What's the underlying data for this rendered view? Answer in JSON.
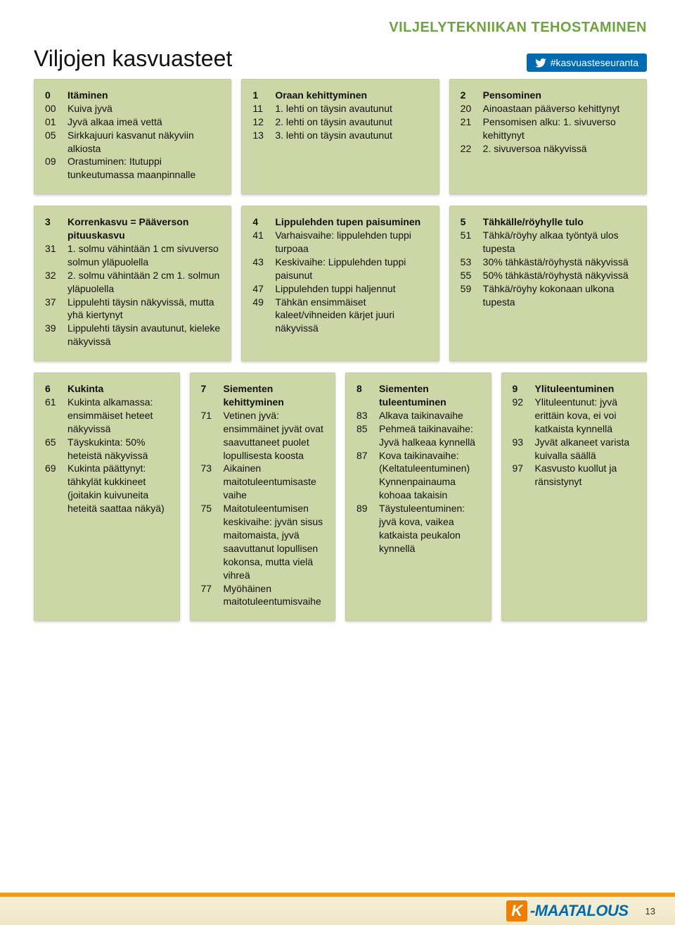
{
  "header": {
    "section_tag": "VILJELYTEKNIIKAN TEHOSTAMINEN",
    "title": "Viljojen kasvuasteet",
    "hashtag": "#kasvuasteseuranta"
  },
  "colors": {
    "card_bg": "#cdd6a7",
    "section_tag": "#6fa33e",
    "pill_bg": "#006ab0",
    "footer_accent": "#f39b13",
    "logo_orange": "#ef7d00",
    "logo_blue": "#006ab0"
  },
  "footer": {
    "page_number": "13",
    "logo_k": "K",
    "logo_rest": "-MAATALOUS"
  },
  "rows": [
    {
      "cols": 3,
      "cards": [
        {
          "entries": [
            {
              "c": "0",
              "t": "Itäminen"
            },
            {
              "c": "00",
              "t": "Kuiva jyvä"
            },
            {
              "c": "01",
              "t": "Jyvä alkaa imeä vettä"
            },
            {
              "c": "05",
              "t": "Sirkkajuuri kasvanut näkyviin alkiosta"
            },
            {
              "c": "09",
              "t": "Orastuminen: Itutuppi tunkeutumassa maanpinnalle"
            }
          ]
        },
        {
          "entries": [
            {
              "c": "1",
              "t": "Oraan kehittyminen"
            },
            {
              "c": "11",
              "t": "1. lehti on täysin avautunut"
            },
            {
              "c": "12",
              "t": "2. lehti on täysin avautunut"
            },
            {
              "c": "13",
              "t": "3. lehti on täysin avautunut"
            }
          ]
        },
        {
          "entries": [
            {
              "c": "2",
              "t": "Pensominen"
            },
            {
              "c": "20",
              "t": "Ainoastaan pääverso kehittynyt"
            },
            {
              "c": "21",
              "t": "Pensomisen alku: 1. sivuverso kehittynyt"
            },
            {
              "c": "22",
              "t": "2. sivuversoa näkyvissä"
            }
          ]
        }
      ]
    },
    {
      "cols": 3,
      "cards": [
        {
          "entries": [
            {
              "c": "3",
              "t": "Korrenkasvu = Pääverson pituuskasvu"
            },
            {
              "c": "31",
              "t": "1. solmu vähintään 1 cm sivuverso solmun yläpuolella"
            },
            {
              "c": "32",
              "t": "2. solmu vähintään 2 cm 1. solmun yläpuolella"
            },
            {
              "c": "37",
              "t": "Lippulehti täysin näkyvissä, mutta yhä kiertynyt"
            },
            {
              "c": "39",
              "t": "Lippulehti täysin avautunut, kieleke näkyvissä"
            }
          ]
        },
        {
          "entries": [
            {
              "c": "4",
              "t": "Lippulehden tupen paisuminen"
            },
            {
              "c": "41",
              "t": "Varhaisvaihe: lippulehden tuppi turpoaa"
            },
            {
              "c": "43",
              "t": "Keskivaihe: Lippulehden tuppi paisunut"
            },
            {
              "c": "47",
              "t": "Lippulehden tuppi haljennut"
            },
            {
              "c": "49",
              "t": "Tähkän ensimmäiset kaleet/vihneiden kärjet juuri näkyvissä"
            }
          ]
        },
        {
          "entries": [
            {
              "c": "5",
              "t": "Tähkälle/röyhylle tulo"
            },
            {
              "c": "51",
              "t": "Tähkä/röyhy alkaa työntyä ulos tupesta"
            },
            {
              "c": "53",
              "t": "30% tähkästä/röyhystä näkyvissä"
            },
            {
              "c": "55",
              "t": "50% tähkästä/röyhystä näkyvissä"
            },
            {
              "c": "59",
              "t": "Tähkä/röyhy kokonaan ulkona tupesta"
            }
          ]
        }
      ]
    },
    {
      "cols": 4,
      "cards": [
        {
          "entries": [
            {
              "c": "6",
              "t": "Kukinta"
            },
            {
              "c": "61",
              "t": "Kukinta alkamassa: ensimmäiset heteet näkyvissä"
            },
            {
              "c": "65",
              "t": "Täyskukinta: 50% heteistä näkyvissä"
            },
            {
              "c": "69",
              "t": "Kukinta päättynyt: tähkylät kukkineet (joitakin kuivuneita heteitä saattaa näkyä)"
            }
          ]
        },
        {
          "entries": [
            {
              "c": "7",
              "t": "Siementen kehittyminen"
            },
            {
              "c": "71",
              "t": "Vetinen jyvä: ensimmäinet jyvät ovat saavuttaneet puolet lopullisesta koosta"
            },
            {
              "c": "73",
              "t": "Aikainen maitotuleentumisaste vaihe"
            },
            {
              "c": "75",
              "t": "Maitotuleentumisen keskivaihe: jyvän sisus maitomaista, jyvä saavuttanut lopullisen kokonsa, mutta vielä vihreä"
            },
            {
              "c": "77",
              "t": "Myöhäinen maitotuleentumisvaihe"
            }
          ]
        },
        {
          "entries": [
            {
              "c": "8",
              "t": "Siementen tuleentuminen"
            },
            {
              "c": "83",
              "t": "Alkava taikinavaihe"
            },
            {
              "c": "85",
              "t": "Pehmeä taikinavaihe: Jyvä halkeaa kynnellä"
            },
            {
              "c": "87",
              "t": "Kova taikinavaihe: (Keltatuleentuminen) Kynnenpainauma kohoaa takaisin"
            },
            {
              "c": "89",
              "t": "Täystuleentuminen: jyvä kova, vaikea katkaista peukalon kynnellä"
            }
          ]
        },
        {
          "entries": [
            {
              "c": "9",
              "t": "Ylituleentuminen"
            },
            {
              "c": "92",
              "t": "Ylituleentunut: jyvä erittäin kova, ei voi katkaista kynnellä"
            },
            {
              "c": "93",
              "t": "Jyvät alkaneet varista kuivalla säällä"
            },
            {
              "c": "97",
              "t": "Kasvusto kuollut ja ränsistynyt"
            }
          ]
        }
      ]
    }
  ]
}
